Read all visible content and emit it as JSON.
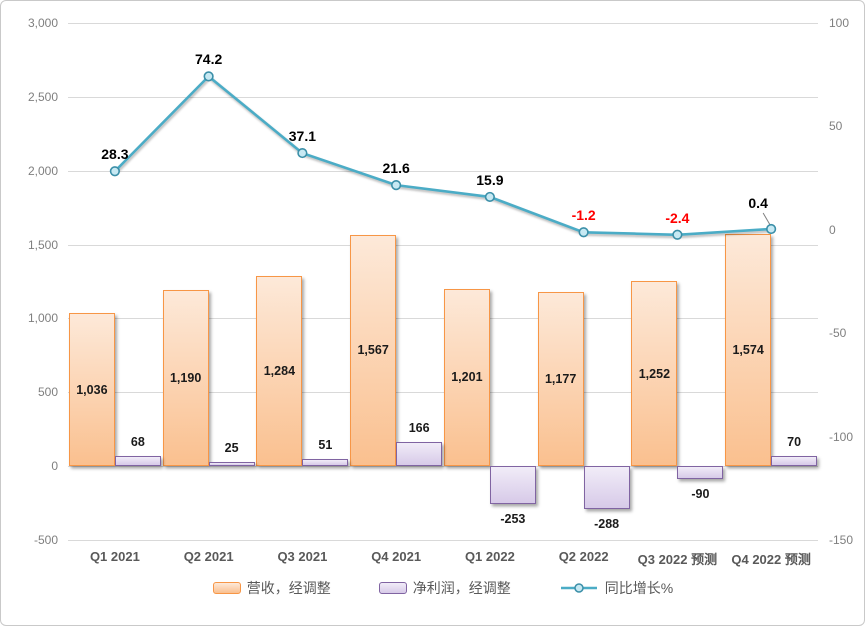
{
  "figure": {
    "background": "#FFFFFF",
    "border_color": "#C9C9C9"
  },
  "chart_data": {
    "type": "combo-bar-line",
    "title": "",
    "categories": [
      "Q1 2021",
      "Q2 2021",
      "Q3 2021",
      "Q4 2021",
      "Q1 2022",
      "Q2 2022",
      "Q3 2022 预测",
      "Q4 2022 预测"
    ],
    "series": [
      {
        "name": "营收，经调整",
        "type": "bar",
        "axis": "left",
        "values": [
          1036,
          1190,
          1284,
          1567,
          1201,
          1177,
          1252,
          1574
        ],
        "labels": [
          "1,036",
          "1,190",
          "1,284",
          "1,567",
          "1,201",
          "1,177",
          "1,252",
          "1,574"
        ],
        "label_position": "center",
        "fill_top": "#FDE9D9",
        "fill_bottom": "#FAC08F",
        "border": "#F79646"
      },
      {
        "name": "净利润，经调整",
        "type": "bar",
        "axis": "left",
        "values": [
          68,
          25,
          51,
          166,
          -253,
          -288,
          -90,
          70
        ],
        "labels": [
          "68",
          "25",
          "51",
          "166",
          "-253",
          "-288",
          "-90",
          "70"
        ],
        "label_position": "outside",
        "fill_top": "#F1ECF8",
        "fill_bottom": "#D7CAE8",
        "border": "#8064A2"
      },
      {
        "name": "同比增长%",
        "type": "line",
        "axis": "right",
        "values": [
          28.3,
          74.2,
          37.1,
          21.6,
          15.9,
          -1.2,
          -2.4,
          0.4
        ],
        "labels": [
          "28.3",
          "74.2",
          "37.1",
          "21.6",
          "15.9",
          "-1.2",
          "-2.4",
          "0.4"
        ],
        "label_colors": [
          "#000000",
          "#000000",
          "#000000",
          "#000000",
          "#000000",
          "#FF0000",
          "#FF0000",
          "#000000"
        ],
        "line_color": "#4BACC6",
        "marker_fill": "#C7E9F3",
        "marker_stroke": "#3B8FA8",
        "last_label_leader": true
      }
    ],
    "left_axis": {
      "min": -500,
      "max": 3000,
      "step": 500,
      "ticks": [
        "3,000",
        "2,500",
        "2,000",
        "1,500",
        "1,000",
        "500",
        "0",
        "-500"
      ]
    },
    "right_axis": {
      "min": -150,
      "max": 100,
      "step": 50,
      "ticks": [
        "100",
        "50",
        "0",
        "-50",
        "-100",
        "-150"
      ]
    },
    "gridlines": true,
    "legend_position": "bottom",
    "colors": {
      "gridline": "#D9D9D9",
      "axis_text": "#7F7F7F",
      "category_text": "#595959",
      "bar_label_text": "#1A1A1A",
      "negative_growth_label": "#FF0000",
      "leader_line": "#808080"
    }
  }
}
